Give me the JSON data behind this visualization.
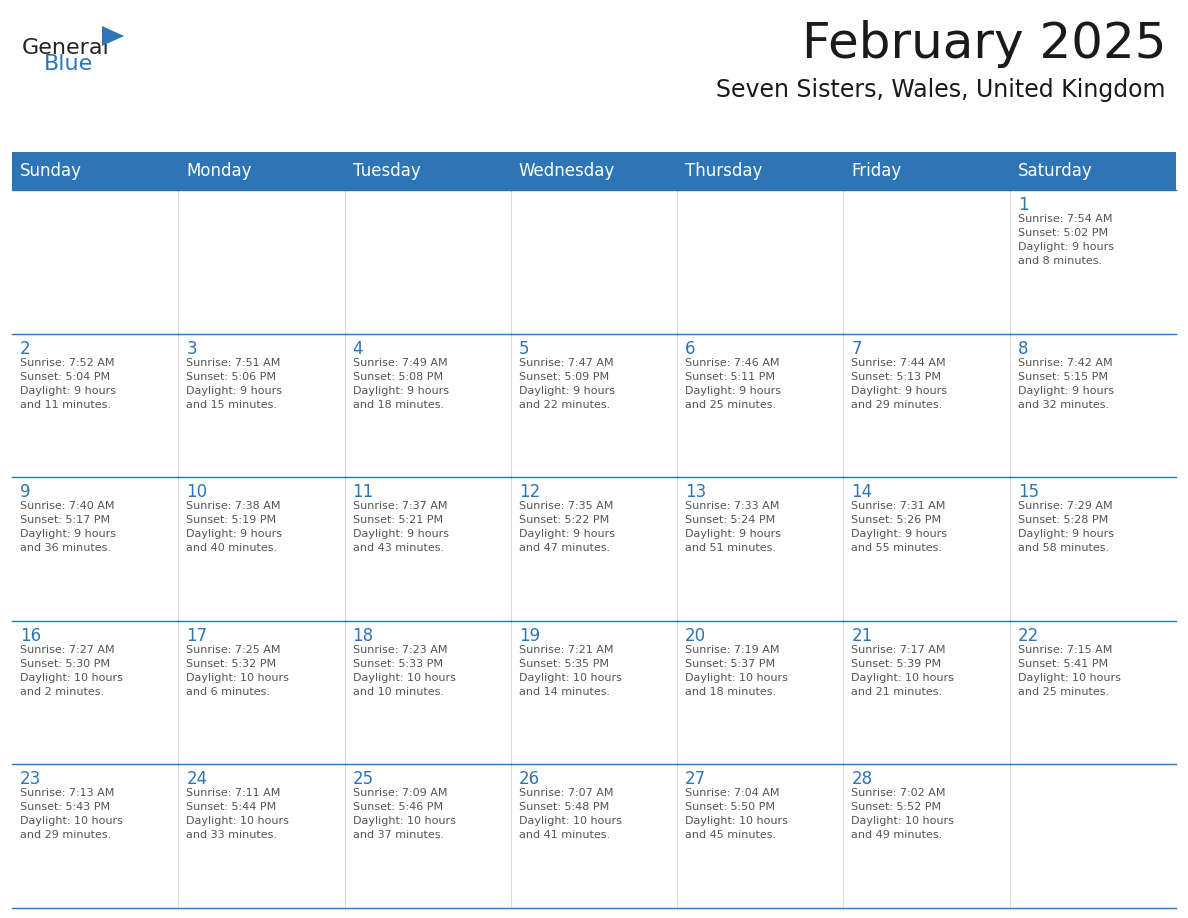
{
  "title": "February 2025",
  "subtitle": "Seven Sisters, Wales, United Kingdom",
  "header_color": "#2e75b6",
  "header_text_color": "#ffffff",
  "cell_bg_color": "#ffffff",
  "cell_border_color": "#2e75b6",
  "day_number_color": "#2e75b6",
  "cell_text_color": "#555555",
  "background_color": "#ffffff",
  "days_of_week": [
    "Sunday",
    "Monday",
    "Tuesday",
    "Wednesday",
    "Thursday",
    "Friday",
    "Saturday"
  ],
  "calendar_data": [
    [
      null,
      null,
      null,
      null,
      null,
      null,
      {
        "day": "1",
        "sunrise": "7:54 AM",
        "sunset": "5:02 PM",
        "daylight_line1": "Daylight: 9 hours",
        "daylight_line2": "and 8 minutes."
      }
    ],
    [
      {
        "day": "2",
        "sunrise": "7:52 AM",
        "sunset": "5:04 PM",
        "daylight_line1": "Daylight: 9 hours",
        "daylight_line2": "and 11 minutes."
      },
      {
        "day": "3",
        "sunrise": "7:51 AM",
        "sunset": "5:06 PM",
        "daylight_line1": "Daylight: 9 hours",
        "daylight_line2": "and 15 minutes."
      },
      {
        "day": "4",
        "sunrise": "7:49 AM",
        "sunset": "5:08 PM",
        "daylight_line1": "Daylight: 9 hours",
        "daylight_line2": "and 18 minutes."
      },
      {
        "day": "5",
        "sunrise": "7:47 AM",
        "sunset": "5:09 PM",
        "daylight_line1": "Daylight: 9 hours",
        "daylight_line2": "and 22 minutes."
      },
      {
        "day": "6",
        "sunrise": "7:46 AM",
        "sunset": "5:11 PM",
        "daylight_line1": "Daylight: 9 hours",
        "daylight_line2": "and 25 minutes."
      },
      {
        "day": "7",
        "sunrise": "7:44 AM",
        "sunset": "5:13 PM",
        "daylight_line1": "Daylight: 9 hours",
        "daylight_line2": "and 29 minutes."
      },
      {
        "day": "8",
        "sunrise": "7:42 AM",
        "sunset": "5:15 PM",
        "daylight_line1": "Daylight: 9 hours",
        "daylight_line2": "and 32 minutes."
      }
    ],
    [
      {
        "day": "9",
        "sunrise": "7:40 AM",
        "sunset": "5:17 PM",
        "daylight_line1": "Daylight: 9 hours",
        "daylight_line2": "and 36 minutes."
      },
      {
        "day": "10",
        "sunrise": "7:38 AM",
        "sunset": "5:19 PM",
        "daylight_line1": "Daylight: 9 hours",
        "daylight_line2": "and 40 minutes."
      },
      {
        "day": "11",
        "sunrise": "7:37 AM",
        "sunset": "5:21 PM",
        "daylight_line1": "Daylight: 9 hours",
        "daylight_line2": "and 43 minutes."
      },
      {
        "day": "12",
        "sunrise": "7:35 AM",
        "sunset": "5:22 PM",
        "daylight_line1": "Daylight: 9 hours",
        "daylight_line2": "and 47 minutes."
      },
      {
        "day": "13",
        "sunrise": "7:33 AM",
        "sunset": "5:24 PM",
        "daylight_line1": "Daylight: 9 hours",
        "daylight_line2": "and 51 minutes."
      },
      {
        "day": "14",
        "sunrise": "7:31 AM",
        "sunset": "5:26 PM",
        "daylight_line1": "Daylight: 9 hours",
        "daylight_line2": "and 55 minutes."
      },
      {
        "day": "15",
        "sunrise": "7:29 AM",
        "sunset": "5:28 PM",
        "daylight_line1": "Daylight: 9 hours",
        "daylight_line2": "and 58 minutes."
      }
    ],
    [
      {
        "day": "16",
        "sunrise": "7:27 AM",
        "sunset": "5:30 PM",
        "daylight_line1": "Daylight: 10 hours",
        "daylight_line2": "and 2 minutes."
      },
      {
        "day": "17",
        "sunrise": "7:25 AM",
        "sunset": "5:32 PM",
        "daylight_line1": "Daylight: 10 hours",
        "daylight_line2": "and 6 minutes."
      },
      {
        "day": "18",
        "sunrise": "7:23 AM",
        "sunset": "5:33 PM",
        "daylight_line1": "Daylight: 10 hours",
        "daylight_line2": "and 10 minutes."
      },
      {
        "day": "19",
        "sunrise": "7:21 AM",
        "sunset": "5:35 PM",
        "daylight_line1": "Daylight: 10 hours",
        "daylight_line2": "and 14 minutes."
      },
      {
        "day": "20",
        "sunrise": "7:19 AM",
        "sunset": "5:37 PM",
        "daylight_line1": "Daylight: 10 hours",
        "daylight_line2": "and 18 minutes."
      },
      {
        "day": "21",
        "sunrise": "7:17 AM",
        "sunset": "5:39 PM",
        "daylight_line1": "Daylight: 10 hours",
        "daylight_line2": "and 21 minutes."
      },
      {
        "day": "22",
        "sunrise": "7:15 AM",
        "sunset": "5:41 PM",
        "daylight_line1": "Daylight: 10 hours",
        "daylight_line2": "and 25 minutes."
      }
    ],
    [
      {
        "day": "23",
        "sunrise": "7:13 AM",
        "sunset": "5:43 PM",
        "daylight_line1": "Daylight: 10 hours",
        "daylight_line2": "and 29 minutes."
      },
      {
        "day": "24",
        "sunrise": "7:11 AM",
        "sunset": "5:44 PM",
        "daylight_line1": "Daylight: 10 hours",
        "daylight_line2": "and 33 minutes."
      },
      {
        "day": "25",
        "sunrise": "7:09 AM",
        "sunset": "5:46 PM",
        "daylight_line1": "Daylight: 10 hours",
        "daylight_line2": "and 37 minutes."
      },
      {
        "day": "26",
        "sunrise": "7:07 AM",
        "sunset": "5:48 PM",
        "daylight_line1": "Daylight: 10 hours",
        "daylight_line2": "and 41 minutes."
      },
      {
        "day": "27",
        "sunrise": "7:04 AM",
        "sunset": "5:50 PM",
        "daylight_line1": "Daylight: 10 hours",
        "daylight_line2": "and 45 minutes."
      },
      {
        "day": "28",
        "sunrise": "7:02 AM",
        "sunset": "5:52 PM",
        "daylight_line1": "Daylight: 10 hours",
        "daylight_line2": "and 49 minutes."
      },
      null
    ]
  ],
  "logo_text1": "General",
  "logo_text2": "Blue",
  "logo_color1": "#222222",
  "logo_color2": "#2e75b6",
  "logo_triangle_color": "#2e75b6",
  "figsize": [
    11.88,
    9.18
  ],
  "dpi": 100
}
